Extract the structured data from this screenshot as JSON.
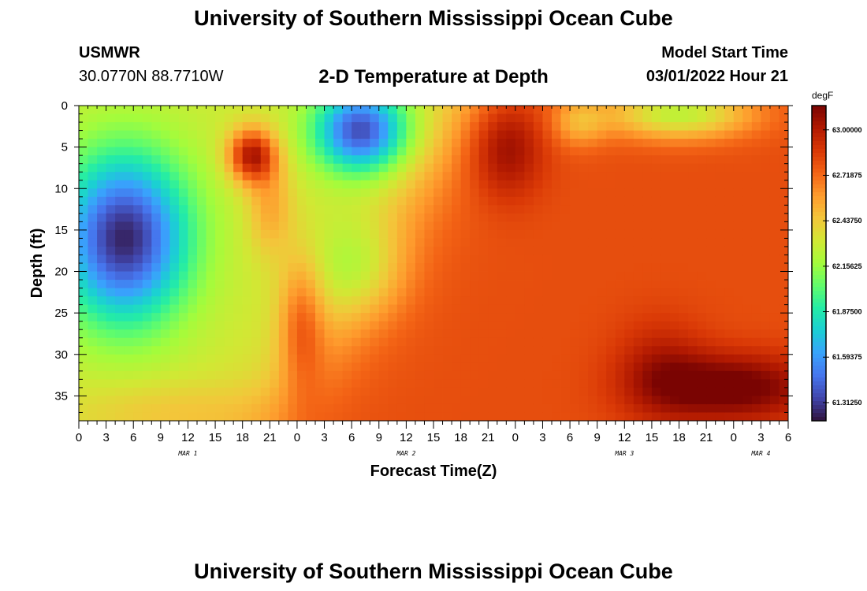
{
  "header": {
    "title": "University of Southern Mississippi Ocean Cube",
    "station": "USMWR",
    "coordinates": "30.0770N  88.7710W",
    "subtitle": "2-D Temperature at Depth",
    "model_start_label": "Model Start Time",
    "model_start_value": "03/01/2022 Hour 21"
  },
  "footer": {
    "title": "University of Southern Mississippi Ocean Cube"
  },
  "chart_data": {
    "type": "heatmap",
    "title": "2-D Temperature at Depth",
    "xlabel": "Forecast Time(Z)",
    "ylabel": "Depth (ft)",
    "x_tick_labels": [
      "0",
      "3",
      "6",
      "9",
      "12",
      "15",
      "18",
      "21",
      "0",
      "3",
      "6",
      "9",
      "12",
      "15",
      "18",
      "21",
      "0",
      "3",
      "6",
      "9",
      "12",
      "15",
      "18",
      "21",
      "0",
      "3",
      "6"
    ],
    "x_hours": [
      0,
      3,
      6,
      9,
      12,
      15,
      18,
      21,
      24,
      27,
      30,
      33,
      36,
      39,
      42,
      45,
      48,
      51,
      54,
      57,
      60,
      63,
      66,
      69,
      72,
      75,
      78
    ],
    "date_labels": [
      {
        "label": "MAR 1",
        "hour": 12
      },
      {
        "label": "MAR 2",
        "hour": 36
      },
      {
        "label": "MAR 3",
        "hour": 60
      },
      {
        "label": "MAR 4",
        "hour": 75
      }
    ],
    "y_ticks": [
      0,
      5,
      10,
      15,
      20,
      25,
      30,
      35
    ],
    "xlim": [
      0,
      78
    ],
    "ylim": [
      38,
      0
    ],
    "colorbar": {
      "unit": "degF",
      "min": 61.2,
      "max": 63.15,
      "tick_values": [
        63.0,
        62.71875,
        62.4375,
        62.15625,
        61.875,
        61.59375,
        61.3125
      ],
      "tick_labels": [
        "63.00000",
        "62.71875",
        "62.43750",
        "62.15625",
        "61.87500",
        "61.59375",
        "61.31250"
      ],
      "colormap": [
        "#30123b",
        "#4145ab",
        "#4675ed",
        "#39a2fc",
        "#1bcfd4",
        "#24eca6",
        "#61fc6c",
        "#a4fc3b",
        "#d1e834",
        "#f3c63a",
        "#fe9b2d",
        "#f36315",
        "#d93806",
        "#b11901",
        "#7a0402"
      ]
    },
    "temperature_features": [
      {
        "region": "cold core, hours 0-12, depth 5-25 ft",
        "hour": 3,
        "depth": 14,
        "value": 61.35
      },
      {
        "region": "cold surface, hours 24-36, depth 0-10 ft",
        "hour": 32,
        "depth": 3,
        "value": 61.45
      },
      {
        "region": "warm patch, hour 19, depth 6 ft",
        "hour": 19,
        "depth": 6,
        "value": 62.85
      },
      {
        "region": "warm band, hour 25, depth 26 ft",
        "hour": 25.5,
        "depth": 26,
        "value": 62.6
      },
      {
        "region": "warm surface, hours 45-50, depth 0-10 ft",
        "hour": 47,
        "depth": 5,
        "value": 63.0
      },
      {
        "region": "warmest bottom, hours 63-76, depth 30-36 ft",
        "hour": 72,
        "depth": 34,
        "value": 63.1
      },
      {
        "region": "cooler surface, hours 63-72, depth 0-3 ft",
        "hour": 66,
        "depth": 1,
        "value": 62.4
      }
    ]
  }
}
